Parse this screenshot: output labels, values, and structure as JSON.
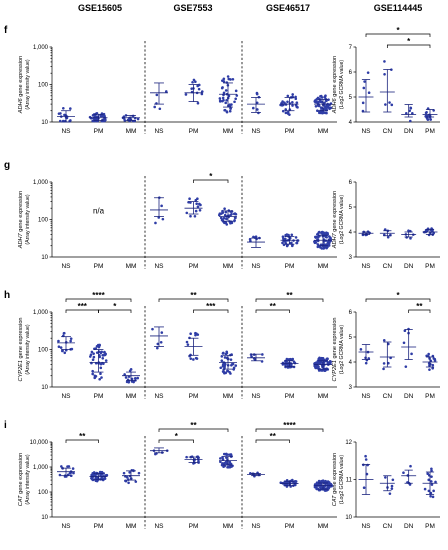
{
  "datasets": [
    "GSE15605",
    "GSE7553",
    "GSE46517",
    "GSE114445"
  ],
  "colors": {
    "points": "#2f3da6",
    "bars": "#1a237e"
  },
  "chart_data": [
    {
      "panel": "f",
      "type": "scatter",
      "log": true,
      "ylabel_gene": "ADH6",
      "ylabel_rest": " gene expression",
      "ylabel2": "(Array intensity value)",
      "yticks": [
        "1,000",
        "100",
        "10"
      ],
      "ylim": [
        10,
        1000
      ],
      "groups": [
        {
          "dataset": "GSE15605",
          "cats": [
            "NS",
            "PM",
            "MM"
          ],
          "stats": [
            [
              14,
              10,
              20
            ],
            [
              13,
              11,
              16
            ],
            [
              13,
              11,
              15
            ]
          ],
          "n": [
            15,
            45,
            15
          ]
        },
        {
          "dataset": "GSE7553",
          "cats": [
            "NS",
            "PM",
            "MM"
          ],
          "stats": [
            [
              60,
              30,
              110
            ],
            [
              60,
              35,
              100
            ],
            [
              55,
              25,
              110
            ]
          ],
          "n": [
            5,
            14,
            40
          ]
        },
        {
          "dataset": "GSE46517",
          "cats": [
            "NS",
            "PM",
            "MM"
          ],
          "stats": [
            [
              30,
              18,
              45
            ],
            [
              30,
              20,
              45
            ],
            [
              30,
              20,
              40
            ]
          ],
          "n": [
            7,
            31,
            73
          ]
        }
      ],
      "sig": []
    },
    {
      "panel": "f",
      "type": "scatter",
      "log": false,
      "ylabel_gene": "ADH6",
      "ylabel_rest": " gene expression",
      "ylabel2": "(Log2 GCRMA value)",
      "yticks": [
        "7",
        "6",
        "5",
        "4"
      ],
      "ylim": [
        4,
        7
      ],
      "groups": [
        {
          "dataset": "GSE114445",
          "cats": [
            "NS",
            "CN",
            "DN",
            "PM"
          ],
          "stats": [
            [
              5.0,
              4.4,
              5.7
            ],
            [
              5.2,
              4.4,
              6.1
            ],
            [
              4.3,
              4.2,
              4.7
            ],
            [
              4.3,
              4.2,
              4.5
            ]
          ],
          "n": [
            6,
            6,
            6,
            16
          ]
        }
      ],
      "sig": [
        {
          "from": 1,
          "to": 3,
          "label": "*",
          "level": 1
        },
        {
          "from": 0,
          "to": 3,
          "label": "*",
          "level": 2
        }
      ]
    },
    {
      "panel": "g",
      "type": "scatter",
      "log": true,
      "ylabel_gene": "ADH7",
      "ylabel_rest": " gene expression",
      "ylabel2": "(Array intensity value)",
      "yticks": [
        "1,000",
        "100",
        "10"
      ],
      "ylim": [
        10,
        1000
      ],
      "na": "n/a",
      "groups": [
        {
          "dataset": "GSE15605",
          "cats": [
            "NS",
            "PM",
            "MM"
          ],
          "stats": null,
          "n": [
            0,
            0,
            0
          ]
        },
        {
          "dataset": "GSE7553",
          "cats": [
            "NS",
            "PM",
            "MM"
          ],
          "stats": [
            [
              180,
              120,
              380
            ],
            [
              200,
              140,
              300
            ],
            [
              120,
              90,
              170
            ]
          ],
          "n": [
            5,
            14,
            40
          ]
        },
        {
          "dataset": "GSE46517",
          "cats": [
            "NS",
            "PM",
            "MM"
          ],
          "stats": [
            [
              25,
              18,
              32
            ],
            [
              28,
              22,
              35
            ],
            [
              28,
              20,
              38
            ]
          ],
          "n": [
            7,
            31,
            73
          ]
        }
      ],
      "sig": [
        {
          "group": 1,
          "from": 1,
          "to": 2,
          "label": "*",
          "level": 1
        }
      ]
    },
    {
      "panel": "g",
      "type": "scatter",
      "log": false,
      "ylabel_gene": "ADH7",
      "ylabel_rest": " gene expression",
      "ylabel2": "(Log2 GCRMA value)",
      "yticks": [
        "6",
        "5",
        "4",
        "3"
      ],
      "ylim": [
        3,
        6
      ],
      "groups": [
        {
          "dataset": "GSE114445",
          "cats": [
            "NS",
            "CN",
            "DN",
            "PM"
          ],
          "stats": [
            [
              3.95,
              3.9,
              4.0
            ],
            [
              3.95,
              3.85,
              4.05
            ],
            [
              3.9,
              3.8,
              4.0
            ],
            [
              4.0,
              3.9,
              4.1
            ]
          ],
          "n": [
            6,
            6,
            6,
            16
          ]
        }
      ],
      "sig": []
    },
    {
      "panel": "h",
      "type": "scatter",
      "log": true,
      "ylabel_gene": "CYP2E1",
      "ylabel_rest": " gene expression",
      "ylabel2": "(Array intensity value)",
      "yticks": [
        "1,000",
        "100",
        "10"
      ],
      "ylim": [
        10,
        1000
      ],
      "groups": [
        {
          "dataset": "GSE15605",
          "cats": [
            "NS",
            "PM",
            "MM"
          ],
          "stats": [
            [
              150,
              100,
              220
            ],
            [
              45,
              25,
              100
            ],
            [
              20,
              15,
              25
            ]
          ],
          "n": [
            15,
            45,
            15
          ]
        },
        {
          "dataset": "GSE7553",
          "cats": [
            "NS",
            "PM",
            "MM"
          ],
          "stats": [
            [
              230,
              120,
              400
            ],
            [
              120,
              70,
              200
            ],
            [
              45,
              30,
              70
            ]
          ],
          "n": [
            5,
            14,
            40
          ]
        },
        {
          "dataset": "GSE46517",
          "cats": [
            "NS",
            "PM",
            "MM"
          ],
          "stats": [
            [
              60,
              50,
              75
            ],
            [
              42,
              35,
              50
            ],
            [
              40,
              30,
              50
            ]
          ],
          "n": [
            7,
            31,
            73
          ]
        }
      ],
      "sig": [
        {
          "group": 0,
          "from": 0,
          "to": 1,
          "label": "***",
          "level": 1
        },
        {
          "group": 0,
          "from": 1,
          "to": 2,
          "label": "*",
          "level": 1
        },
        {
          "group": 0,
          "from": 0,
          "to": 2,
          "label": "****",
          "level": 2
        },
        {
          "group": 1,
          "from": 1,
          "to": 2,
          "label": "***",
          "level": 1
        },
        {
          "group": 1,
          "from": 0,
          "to": 2,
          "label": "**",
          "level": 2
        },
        {
          "group": 2,
          "from": 0,
          "to": 1,
          "label": "**",
          "level": 1
        },
        {
          "group": 2,
          "from": 0,
          "to": 2,
          "label": "**",
          "level": 2
        }
      ]
    },
    {
      "panel": "h",
      "type": "scatter",
      "log": false,
      "ylabel_gene": "CYP2E1",
      "ylabel_rest": " gene expression",
      "ylabel2": "(Log2 GCRMA value)",
      "yticks": [
        "6",
        "5",
        "4",
        "3"
      ],
      "ylim": [
        3,
        6
      ],
      "groups": [
        {
          "dataset": "GSE114445",
          "cats": [
            "NS",
            "CN",
            "DN",
            "PM"
          ],
          "stats": [
            [
              4.4,
              4.1,
              4.7
            ],
            [
              4.2,
              3.8,
              4.8
            ],
            [
              4.6,
              4.1,
              5.3
            ],
            [
              4.0,
              3.8,
              4.2
            ]
          ],
          "n": [
            6,
            6,
            6,
            16
          ]
        }
      ],
      "sig": [
        {
          "from": 2,
          "to": 3,
          "label": "**",
          "level": 1
        },
        {
          "from": 0,
          "to": 3,
          "label": "*",
          "level": 2
        }
      ]
    },
    {
      "panel": "i",
      "type": "scatter",
      "log": true,
      "ylabel_gene": "CAT",
      "ylabel_rest": " gene expression",
      "ylabel2": "(Array intensity value)",
      "yticks": [
        "10,000",
        "1,000",
        "100",
        "10"
      ],
      "ylim": [
        10,
        10000
      ],
      "groups": [
        {
          "dataset": "GSE15605",
          "cats": [
            "NS",
            "PM",
            "MM"
          ],
          "stats": [
            [
              650,
              450,
              900
            ],
            [
              420,
              320,
              550
            ],
            [
              450,
              300,
              700
            ]
          ],
          "n": [
            15,
            45,
            15
          ]
        },
        {
          "dataset": "GSE7553",
          "cats": [
            "NS",
            "PM",
            "MM"
          ],
          "stats": [
            [
              4500,
              3700,
              5800
            ],
            [
              2000,
              1500,
              2500
            ],
            [
              1800,
              1200,
              2600
            ]
          ],
          "n": [
            5,
            14,
            40
          ]
        },
        {
          "dataset": "GSE46517",
          "cats": [
            "NS",
            "PM",
            "MM"
          ],
          "stats": [
            [
              500,
              450,
              550
            ],
            [
              220,
              180,
              270
            ],
            [
              180,
              130,
              230
            ]
          ],
          "n": [
            7,
            31,
            73
          ]
        }
      ],
      "sig": [
        {
          "group": 0,
          "from": 0,
          "to": 1,
          "label": "**",
          "level": 1
        },
        {
          "group": 1,
          "from": 0,
          "to": 1,
          "label": "*",
          "level": 1
        },
        {
          "group": 1,
          "from": 0,
          "to": 2,
          "label": "**",
          "level": 2
        },
        {
          "group": 2,
          "from": 0,
          "to": 1,
          "label": "**",
          "level": 1
        },
        {
          "group": 2,
          "from": 0,
          "to": 2,
          "label": "****",
          "level": 2
        }
      ]
    },
    {
      "panel": "i",
      "type": "scatter",
      "log": false,
      "ylabel_gene": "CAT",
      "ylabel_rest": " gene expression",
      "ylabel2": "(Log2 GCRMA value)",
      "yticks": [
        "12",
        "11",
        "10"
      ],
      "ylim": [
        10,
        12
      ],
      "groups": [
        {
          "dataset": "GSE114445",
          "cats": [
            "NS",
            "CN",
            "DN",
            "PM"
          ],
          "stats": [
            [
              11.0,
              10.6,
              11.4
            ],
            [
              10.9,
              10.7,
              11.1
            ],
            [
              11.1,
              10.9,
              11.25
            ],
            [
              10.9,
              10.6,
              11.2
            ]
          ],
          "n": [
            6,
            6,
            6,
            16
          ]
        }
      ],
      "sig": []
    }
  ]
}
